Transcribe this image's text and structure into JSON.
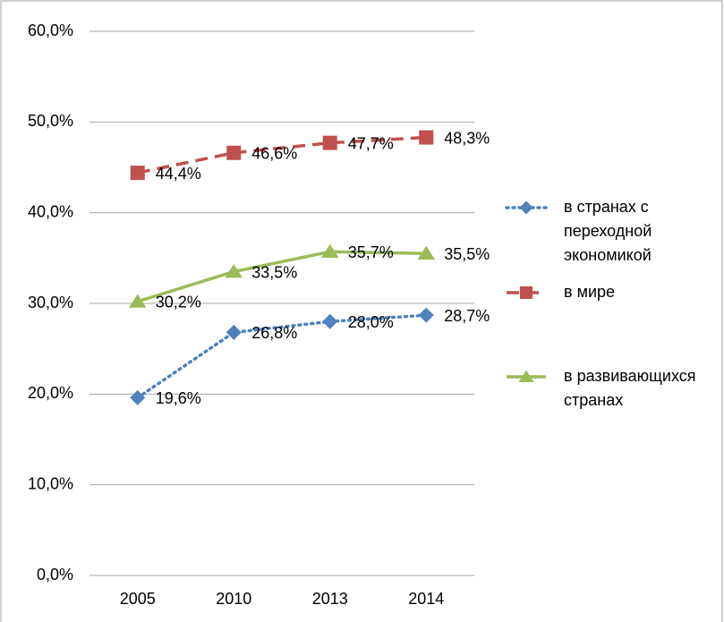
{
  "chart_data": {
    "type": "line",
    "categories": [
      "2005",
      "2010",
      "2013",
      "2014"
    ],
    "series": [
      {
        "name": "в странах с переходной экономикой",
        "color": "#4f81bd",
        "marker": "diamond",
        "dash": "dotted",
        "values": [
          19.6,
          26.8,
          28.0,
          28.7
        ],
        "value_labels": [
          "19,6%",
          "26,8%",
          "28,0%",
          "28,7%"
        ]
      },
      {
        "name": "в мире",
        "color": "#c0504d",
        "marker": "square",
        "dash": "dashed",
        "values": [
          44.4,
          46.6,
          47.7,
          48.3
        ],
        "value_labels": [
          "44,4%",
          "46,6%",
          "47,7%",
          "48,3%"
        ]
      },
      {
        "name": "в развивающихся странах",
        "color": "#9bbb59",
        "marker": "triangle",
        "dash": "solid",
        "values": [
          30.2,
          33.5,
          35.7,
          35.5
        ],
        "value_labels": [
          "30,2%",
          "33,5%",
          "35,7%",
          "35,5%"
        ]
      }
    ],
    "ylim": [
      0,
      60
    ],
    "yticks": [
      {
        "value": 0,
        "label": "0,0%"
      },
      {
        "value": 10,
        "label": "10,0%"
      },
      {
        "value": 20,
        "label": "20,0%"
      },
      {
        "value": 30,
        "label": "30,0%"
      },
      {
        "value": 40,
        "label": "40,0%"
      },
      {
        "value": 50,
        "label": "50,0%"
      },
      {
        "value": 60,
        "label": "60,0%"
      }
    ],
    "grid": true,
    "legend": "right"
  }
}
